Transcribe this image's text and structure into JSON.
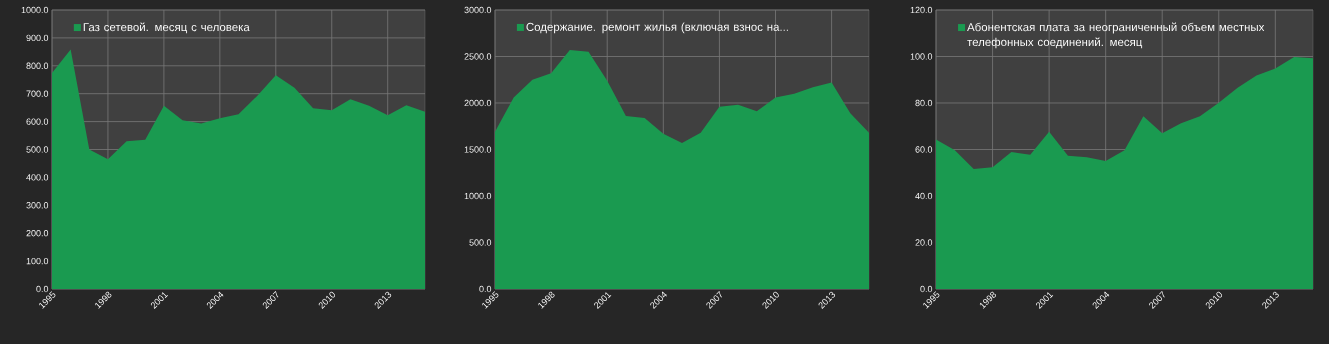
{
  "chart_data": [
    {
      "type": "area",
      "x": [
        1995,
        1996,
        1997,
        1998,
        1999,
        2000,
        2001,
        2002,
        2003,
        2004,
        2005,
        2006,
        2007,
        2008,
        2009,
        2010,
        2011,
        2012,
        2013,
        2014,
        2015
      ],
      "xlim": [
        1995,
        2015
      ],
      "xticks": [
        1995,
        1998,
        2001,
        2004,
        2007,
        2010,
        2013
      ],
      "ylim": [
        0,
        1000
      ],
      "yticks": [
        {
          "value": 0,
          "label": "0.0"
        },
        {
          "value": 100,
          "label": "100.0"
        },
        {
          "value": 200,
          "label": "200.0"
        },
        {
          "value": 300,
          "label": "300.0"
        },
        {
          "value": 400,
          "label": "400.0"
        },
        {
          "value": 500,
          "label": "500.0"
        },
        {
          "value": 600,
          "label": "600.0"
        },
        {
          "value": 700,
          "label": "700.0"
        },
        {
          "value": 800,
          "label": "800.0"
        },
        {
          "value": 900,
          "label": "900.0"
        },
        {
          "value": 1000,
          "label": "1000.0"
        }
      ],
      "grid": true,
      "legend": "top",
      "series": [
        {
          "name": "Газ сетевой. месяц с человека",
          "color": "#1a9a50",
          "values": [
            774,
            858,
            500,
            465,
            530,
            535,
            657,
            605,
            593,
            612,
            626,
            692,
            766,
            721,
            648,
            641,
            680,
            657,
            623,
            659,
            635
          ]
        }
      ]
    },
    {
      "type": "area",
      "x": [
        1995,
        1996,
        1997,
        1998,
        1999,
        2000,
        2001,
        2002,
        2003,
        2004,
        2005,
        2006,
        2007,
        2008,
        2009,
        2010,
        2011,
        2012,
        2013,
        2014,
        2015
      ],
      "xlim": [
        1995,
        2015
      ],
      "xticks": [
        1995,
        1998,
        2001,
        2004,
        2007,
        2010,
        2013
      ],
      "ylim": [
        0,
        3000
      ],
      "yticks": [
        {
          "value": 0,
          "label": "0.0"
        },
        {
          "value": 500,
          "label": "500.0"
        },
        {
          "value": 1000,
          "label": "1000.0"
        },
        {
          "value": 1500,
          "label": "1500.0"
        },
        {
          "value": 2000,
          "label": "2000.0"
        },
        {
          "value": 2500,
          "label": "2500.0"
        },
        {
          "value": 3000,
          "label": "3000.0"
        }
      ],
      "grid": true,
      "legend": "top",
      "series": [
        {
          "name": "Содержание. ремонт жилья (включая взнос на...",
          "color": "#1a9a50",
          "values": [
            1690,
            2060,
            2250,
            2320,
            2570,
            2550,
            2240,
            1860,
            1840,
            1670,
            1570,
            1680,
            1960,
            1980,
            1910,
            2060,
            2100,
            2170,
            2220,
            1890,
            1680
          ]
        }
      ]
    },
    {
      "type": "area",
      "x": [
        1995,
        1996,
        1997,
        1998,
        1999,
        2000,
        2001,
        2002,
        2003,
        2004,
        2005,
        2006,
        2007,
        2008,
        2009,
        2010,
        2011,
        2012,
        2013,
        2014,
        2015
      ],
      "xlim": [
        1995,
        2015
      ],
      "xticks": [
        1995,
        1998,
        2001,
        2004,
        2007,
        2010,
        2013
      ],
      "ylim": [
        0,
        120
      ],
      "yticks": [
        {
          "value": 0,
          "label": "0.0"
        },
        {
          "value": 20,
          "label": "20.0"
        },
        {
          "value": 40,
          "label": "40.0"
        },
        {
          "value": 60,
          "label": "60.0"
        },
        {
          "value": 80,
          "label": "80.0"
        },
        {
          "value": 100,
          "label": "100.0"
        },
        {
          "value": 120,
          "label": "120.0"
        }
      ],
      "grid": true,
      "legend": "top",
      "series": [
        {
          "name": "Абонентская плата за неограниченный объем местных телефонных соединений. месяц",
          "color": "#1a9a50",
          "values": [
            64.3,
            59.7,
            51.6,
            52.4,
            58.9,
            57.7,
            67.6,
            57.3,
            56.7,
            55.0,
            59.7,
            74.3,
            67.0,
            71.3,
            74.3,
            80.1,
            86.6,
            91.8,
            94.8,
            99.8,
            99.2
          ]
        }
      ]
    }
  ]
}
